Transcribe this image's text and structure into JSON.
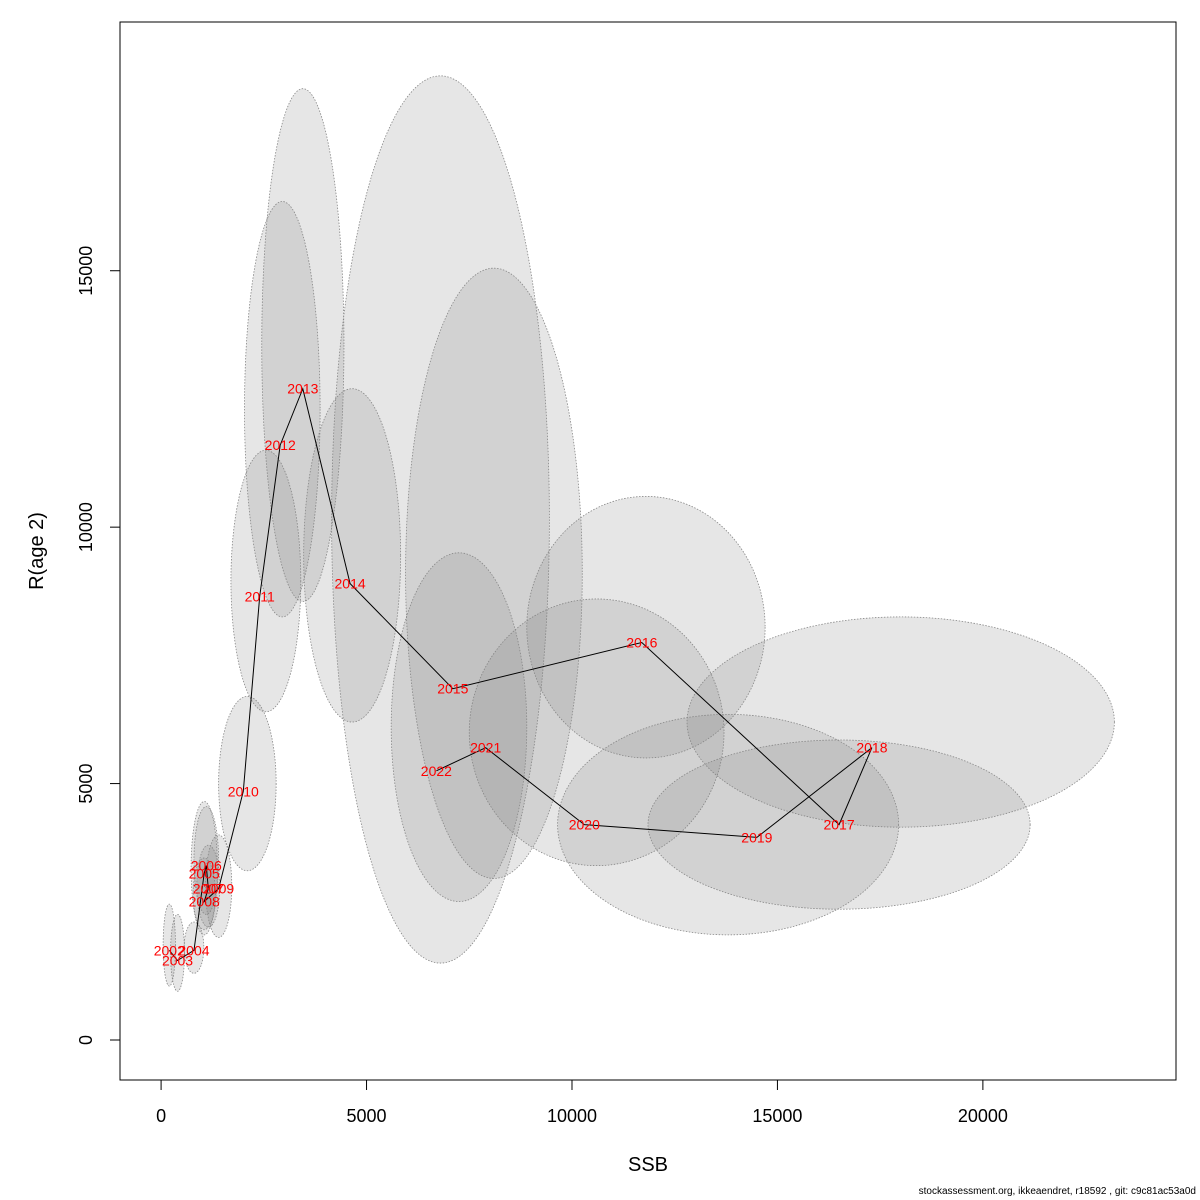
{
  "chart_data": {
    "type": "scatter",
    "xlabel": "SSB",
    "ylabel": "R(age 2)",
    "xlim": [
      -1000,
      24700
    ],
    "ylim": [
      -780,
      19850
    ],
    "x_ticks": [
      0,
      5000,
      10000,
      15000,
      20000
    ],
    "y_ticks": [
      0,
      5000,
      10000,
      15000
    ],
    "points": [
      {
        "year": "2002",
        "x": 200,
        "y": 1750
      },
      {
        "year": "2003",
        "x": 400,
        "y": 1550
      },
      {
        "year": "2004",
        "x": 800,
        "y": 1750
      },
      {
        "year": "2005",
        "x": 1050,
        "y": 3250
      },
      {
        "year": "2006",
        "x": 1100,
        "y": 3400
      },
      {
        "year": "2007",
        "x": 1150,
        "y": 2950
      },
      {
        "year": "2008",
        "x": 1050,
        "y": 2700
      },
      {
        "year": "2009",
        "x": 1400,
        "y": 2950
      },
      {
        "year": "2010",
        "x": 2000,
        "y": 4850
      },
      {
        "year": "2011",
        "x": 2400,
        "y": 8650
      },
      {
        "year": "2012",
        "x": 2900,
        "y": 11600
      },
      {
        "year": "2013",
        "x": 3450,
        "y": 12700
      },
      {
        "year": "2014",
        "x": 4600,
        "y": 8900
      },
      {
        "year": "2015",
        "x": 7100,
        "y": 6850
      },
      {
        "year": "2016",
        "x": 11700,
        "y": 7750
      },
      {
        "year": "2017",
        "x": 16500,
        "y": 4200
      },
      {
        "year": "2018",
        "x": 17300,
        "y": 5700
      },
      {
        "year": "2019",
        "x": 14500,
        "y": 3950
      },
      {
        "year": "2020",
        "x": 10300,
        "y": 4200
      },
      {
        "year": "2021",
        "x": 7900,
        "y": 5700
      },
      {
        "year": "2022",
        "x": 6700,
        "y": 5250
      }
    ],
    "confidence_ellipses": [
      {
        "year": "2002",
        "cx": 200,
        "cy": 1850,
        "rx": 150,
        "ry": 800
      },
      {
        "year": "2003",
        "cx": 400,
        "cy": 1700,
        "rx": 170,
        "ry": 750
      },
      {
        "year": "2004",
        "cx": 800,
        "cy": 1800,
        "rx": 240,
        "ry": 500
      },
      {
        "year": "2005",
        "cx": 1050,
        "cy": 3350,
        "rx": 320,
        "ry": 1300
      },
      {
        "year": "2006",
        "cx": 1100,
        "cy": 3500,
        "rx": 300,
        "ry": 1050
      },
      {
        "year": "2007",
        "cx": 1150,
        "cy": 3000,
        "rx": 280,
        "ry": 800
      },
      {
        "year": "2008",
        "cx": 1050,
        "cy": 2850,
        "rx": 270,
        "ry": 700
      },
      {
        "year": "2009",
        "cx": 1400,
        "cy": 3000,
        "rx": 320,
        "ry": 1000
      },
      {
        "year": "2010",
        "cx": 2100,
        "cy": 5000,
        "rx": 700,
        "ry": 1700
      },
      {
        "year": "2011",
        "cx": 2550,
        "cy": 8950,
        "rx": 850,
        "ry": 2550
      },
      {
        "year": "2012",
        "cx": 2950,
        "cy": 12300,
        "rx": 920,
        "ry": 4050
      },
      {
        "year": "2013",
        "cx": 3450,
        "cy": 13550,
        "rx": 1000,
        "ry": 5000
      },
      {
        "year": "2014",
        "cx": 4650,
        "cy": 9450,
        "rx": 1180,
        "ry": 3250
      },
      {
        "year": "2015",
        "cx": 6800,
        "cy": 10150,
        "rx": 2650,
        "ry": 8650
      },
      {
        "year": "2016",
        "cx": 10600,
        "cy": 6000,
        "rx": 3100,
        "ry": 2600
      },
      {
        "year": "2017",
        "cx": 18000,
        "cy": 6200,
        "rx": 5200,
        "ry": 2050
      },
      {
        "year": "2018",
        "cx": 16500,
        "cy": 4200,
        "rx": 4650,
        "ry": 1650
      },
      {
        "year": "2019",
        "cx": 13800,
        "cy": 4200,
        "rx": 4150,
        "ry": 2150
      },
      {
        "year": "2020",
        "cx": 11800,
        "cy": 8050,
        "rx": 2900,
        "ry": 2550
      },
      {
        "year": "2021",
        "cx": 8100,
        "cy": 9100,
        "rx": 2150,
        "ry": 5950
      },
      {
        "year": "2022",
        "cx": 7250,
        "cy": 6100,
        "rx": 1650,
        "ry": 3400
      }
    ]
  },
  "footer_text": "stockassessment.org, ikkeaendret, r18592 , git: c9c81ac53a0d",
  "colors": {
    "label": "#ff0000",
    "line": "#000000",
    "ellipse_fill": "rgba(128,128,128,0.2)",
    "ellipse_stroke": "#888888"
  }
}
